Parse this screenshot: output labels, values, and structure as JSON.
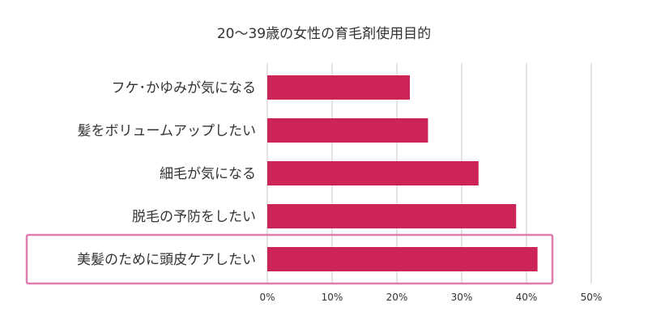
{
  "chart_data": {
    "type": "bar",
    "orientation": "horizontal",
    "title": "20～39歳の女性の育毛剤使用目的",
    "categories": [
      "フケ･かゆみが気になる",
      "髪をボリュームアップしたい",
      "細毛が気になる",
      "脱毛の予防をしたい",
      "美髪のために頭皮ケアしたい"
    ],
    "values": [
      22.0,
      24.8,
      32.6,
      38.4,
      41.7
    ],
    "xlim": [
      0,
      50
    ],
    "xticks": [
      "0%",
      "10%",
      "20%",
      "30%",
      "40%",
      "50%"
    ],
    "grid": true,
    "highlighted_category": "美髪のために頭皮ケアしたい",
    "colors": {
      "bar": "#cc2456",
      "highlight_border": "#e07bb0",
      "grid": "#c8c8c8",
      "text": "#333333"
    }
  }
}
